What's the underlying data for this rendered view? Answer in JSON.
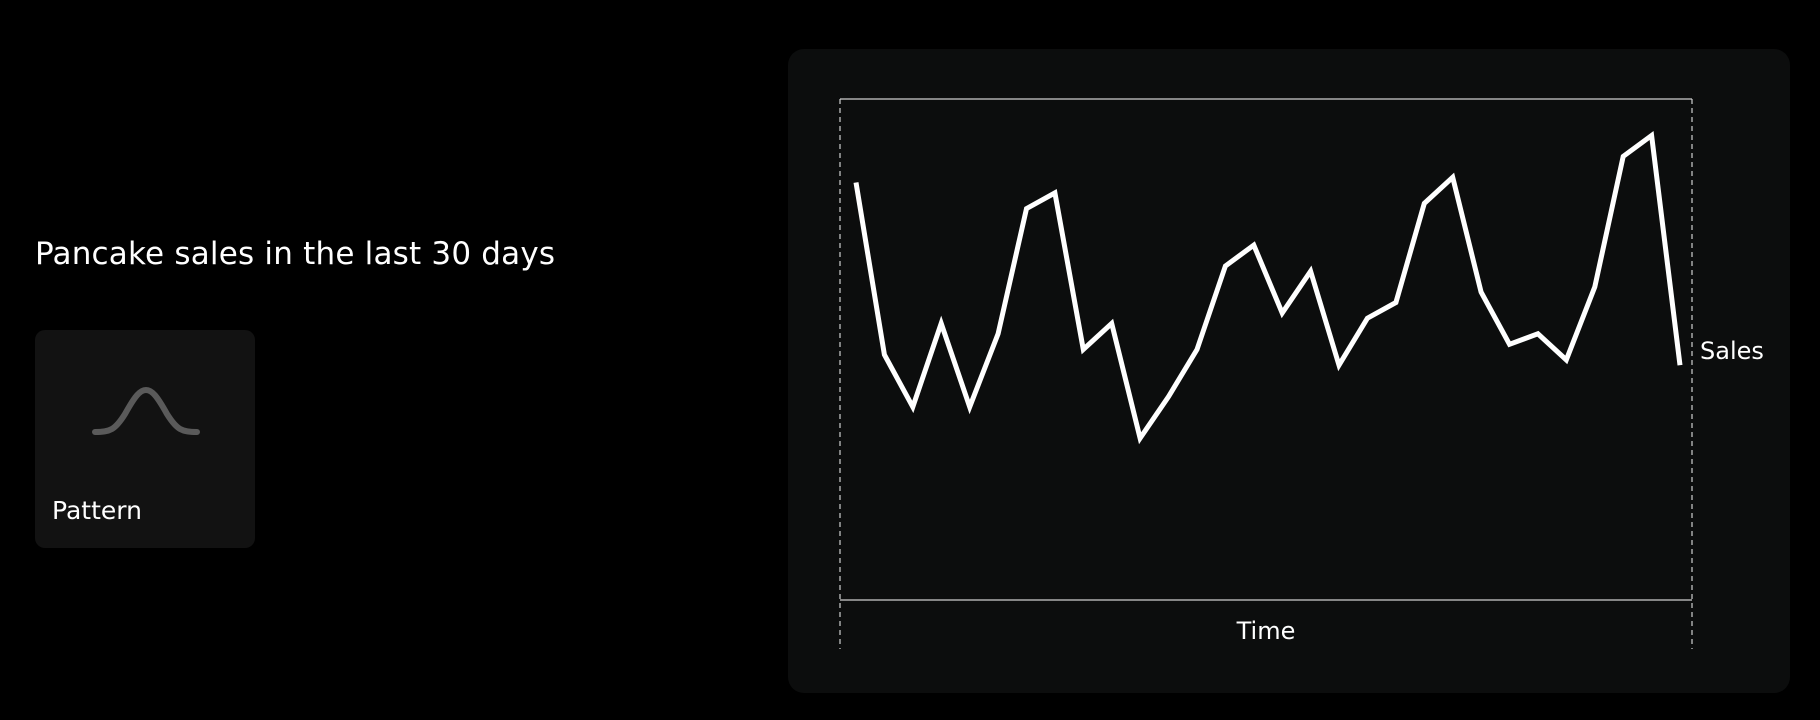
{
  "heading": "Pancake sales in the last 30 days",
  "card": {
    "label": "Pattern",
    "icon": "bell-curve-icon"
  },
  "colors": {
    "background": "#000000",
    "panel": "#0c0d0d",
    "card": "#121212",
    "line": "#ffffff",
    "icon": "#5a5a5a"
  },
  "chart_data": {
    "type": "line",
    "title": "",
    "xlabel": "Time",
    "ylabel": "Sales",
    "x": [
      1,
      2,
      3,
      4,
      5,
      6,
      7,
      8,
      9,
      10,
      11,
      12,
      13,
      14,
      15,
      16,
      17,
      18,
      19,
      20,
      21,
      22,
      23,
      24,
      25,
      26,
      27,
      28,
      29,
      30
    ],
    "series": [
      {
        "values": [
          80,
          47,
          37,
          53,
          37,
          51,
          75,
          78,
          48,
          53,
          31,
          39,
          48,
          64,
          68,
          55,
          63,
          45,
          54,
          57,
          76,
          81,
          59,
          49,
          51,
          46,
          60,
          85,
          89,
          45
        ]
      }
    ],
    "ylim": [
      0,
      96
    ],
    "grid": false,
    "legend": "none"
  }
}
